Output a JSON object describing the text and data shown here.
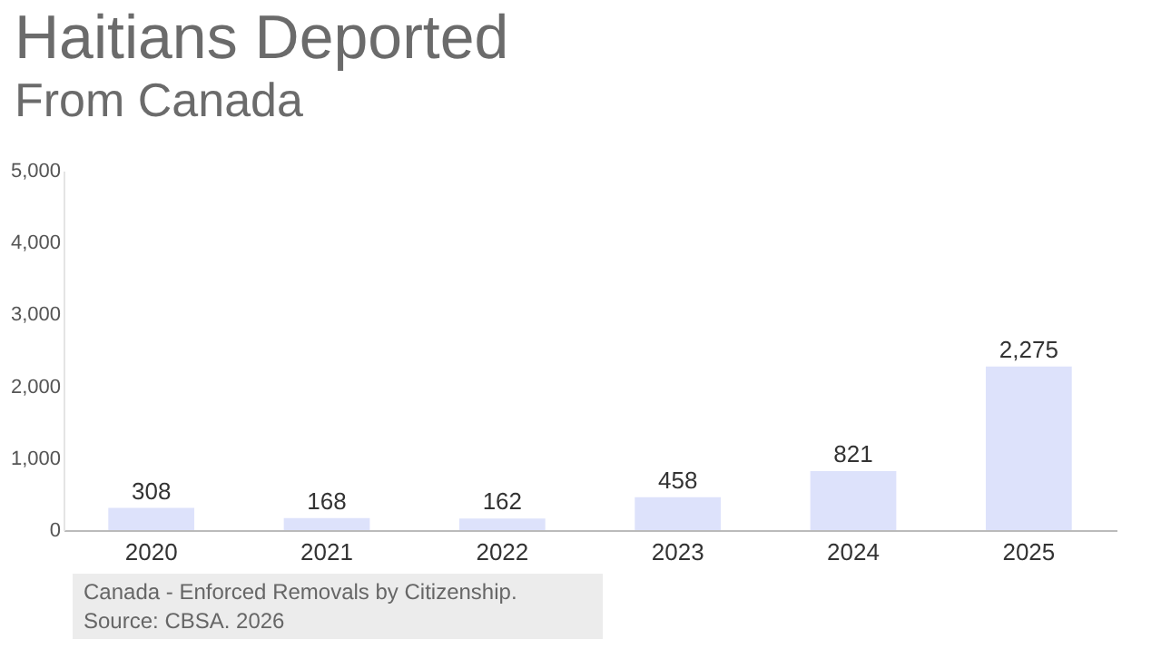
{
  "chart_data": {
    "type": "bar",
    "title": "Haitians Deported",
    "subtitle": "From Canada",
    "categories": [
      "2020",
      "2021",
      "2022",
      "2023",
      "2024",
      "2025"
    ],
    "values": [
      308,
      168,
      162,
      458,
      821,
      2275
    ],
    "color": "#dde2fb",
    "value_labels": [
      "308",
      "168",
      "162",
      "458",
      "821",
      "2,275"
    ],
    "ylim": [
      0,
      5000
    ],
    "yticks": [
      {
        "value": 0,
        "label": "0"
      },
      {
        "value": 1000,
        "label": "1,000"
      },
      {
        "value": 2000,
        "label": "2,000"
      },
      {
        "value": 3000,
        "label": "3,000"
      },
      {
        "value": 4000,
        "label": "4,000"
      },
      {
        "value": 5000,
        "label": "5,000"
      }
    ],
    "grid": false,
    "annotations": [
      "Canada - Enforced Removals by Citizenship.",
      "Source: CBSA. 2026"
    ]
  }
}
